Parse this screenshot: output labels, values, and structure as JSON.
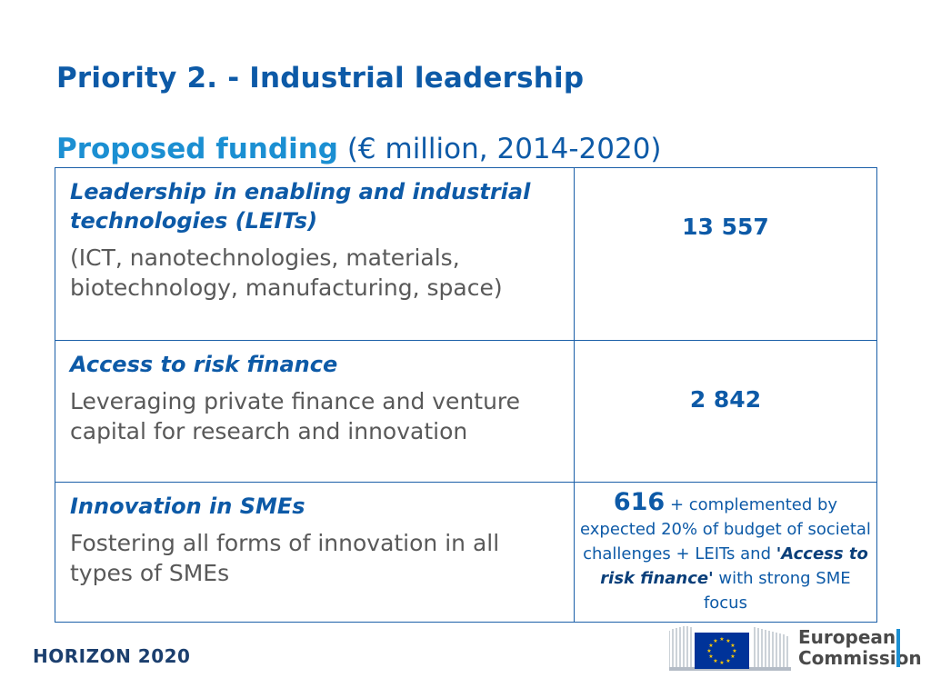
{
  "slide": {
    "title": "Priority 2. - Industrial leadership",
    "subtitle_strong": "Proposed funding",
    "subtitle_rest": " (€ million, 2014-2020)"
  },
  "table": {
    "rows": [
      {
        "title": "Leadership in enabling and industrial technologies (LEITs)",
        "description": "(ICT, nanotechnologies, materials, biotechnology, manufacturing, space)",
        "value": "13 557"
      },
      {
        "title": "Access to risk finance",
        "description": "Leveraging private finance and venture capital for research and innovation",
        "value": "2 842"
      },
      {
        "title": "Innovation in SMEs",
        "description": "Fostering all forms of innovation in all types of SMEs",
        "value": "616",
        "note_part1": " + complemented by expected 20% of budget of societal challenges + LEITs and ",
        "note_emph": "'Access to risk finance'",
        "note_part2": " with strong SME focus"
      }
    ]
  },
  "footer": {
    "program": "HORIZON 2020",
    "org_line1": "European",
    "org_line2": "Commission"
  },
  "colors": {
    "title_blue": "#0d5aa7",
    "accent_blue": "#1b8fd2",
    "body_gray": "#595959",
    "eu_flag_blue": "#003399",
    "eu_star_yellow": "#ffcc00"
  },
  "icons": [
    "eu-flag-icon",
    "commission-building-icon"
  ]
}
